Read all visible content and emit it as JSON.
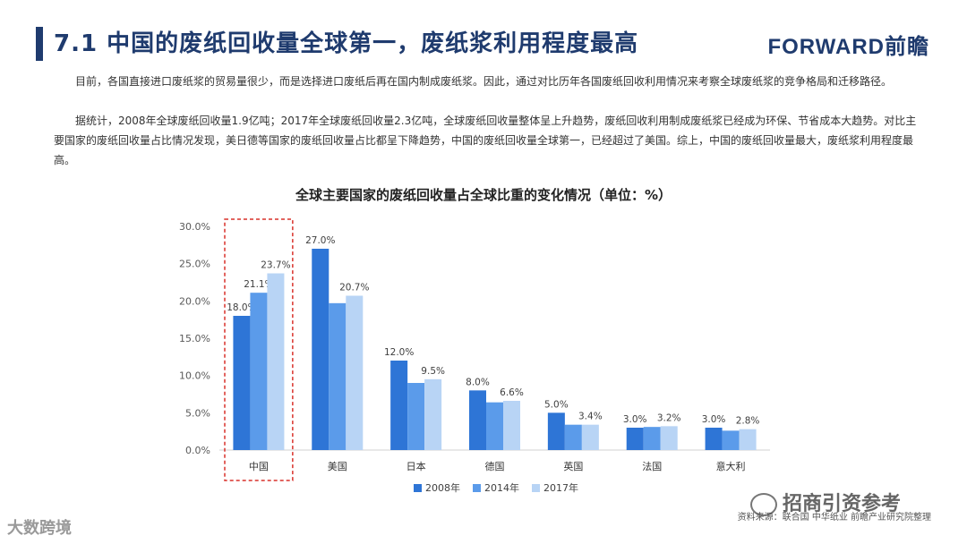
{
  "header": {
    "title": "7.1 中国的废纸回收量全球第一，废纸浆利用程度最高",
    "logo": "FORWARD前瞻"
  },
  "body": {
    "paragraph1": "目前，各国直接进口废纸浆的贸易量很少，而是选择进口废纸后再在国内制成废纸浆。因此，通过对比历年各国废纸回收利用情况来考察全球废纸浆的竞争格局和迁移路径。",
    "paragraph2": "据统计，2008年全球废纸回收量1.9亿吨；2017年全球废纸回收量2.3亿吨，全球废纸回收量整体呈上升趋势，废纸回收利用制成废纸浆已经成为环保、节省成本大趋势。对比主要国家的废纸回收量占比情况发现，美日德等国家的废纸回收量占比都呈下降趋势，中国的废纸回收量全球第一，已经超过了美国。综上，中国的废纸回收量最大，废纸浆利用程度最高。"
  },
  "chart_data": {
    "type": "bar",
    "title": "全球主要国家的废纸回收量占全球比重的变化情况（单位：%）",
    "categories": [
      "中国",
      "美国",
      "日本",
      "德国",
      "英国",
      "法国",
      "意大利"
    ],
    "series": [
      {
        "name": "2008年",
        "values": [
          18.0,
          27.0,
          12.0,
          8.0,
          5.0,
          3.0,
          3.0
        ],
        "color": "#2e75d6"
      },
      {
        "name": "2014年",
        "values": [
          21.1,
          19.7,
          9.0,
          6.4,
          3.4,
          3.1,
          2.6
        ],
        "color": "#5b9bea"
      },
      {
        "name": "2017年",
        "values": [
          23.7,
          20.7,
          9.5,
          6.6,
          3.4,
          3.2,
          2.8
        ],
        "color": "#b8d4f5"
      }
    ],
    "data_labels": [
      [
        "18.0%",
        "21.1%",
        "23.7%"
      ],
      [
        "27.0%",
        "",
        "20.7%"
      ],
      [
        "12.0%",
        "",
        "9.5%"
      ],
      [
        "8.0%",
        "",
        "6.6%"
      ],
      [
        "5.0%",
        "",
        "3.4%"
      ],
      [
        "3.0%",
        "",
        "3.2%"
      ],
      [
        "3.0%",
        "",
        "2.8%"
      ]
    ],
    "yticks": [
      "0.0%",
      "5.0%",
      "10.0%",
      "15.0%",
      "20.0%",
      "25.0%",
      "30.0%"
    ],
    "ylim": [
      0,
      30
    ],
    "highlight_category": "中国",
    "highlight_color": "#d9302a",
    "legend_position": "bottom"
  },
  "footer": {
    "source": "资料来源：联合国 中华纸业 前瞻产业研究院整理",
    "wechat_label": "招商引资参考",
    "left_mark": "大数跨境"
  }
}
